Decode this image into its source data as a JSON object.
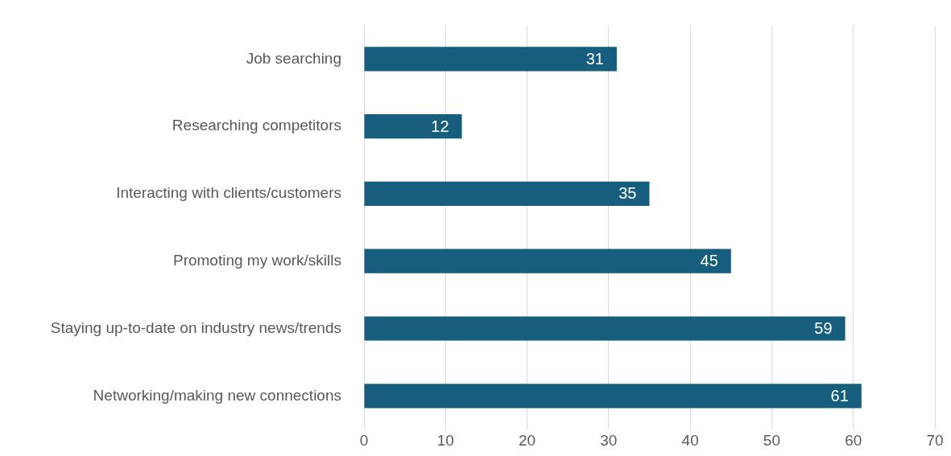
{
  "chart_data": {
    "type": "bar",
    "orientation": "horizontal",
    "categories": [
      "Job searching",
      "Researching competitors",
      "Interacting with clients/customers",
      "Promoting my work/skills",
      "Staying up-to-date on industry news/trends",
      "Networking/making new connections"
    ],
    "values": [
      31,
      12,
      35,
      45,
      59,
      61
    ],
    "color": "#175e7e",
    "xlim": [
      0,
      70
    ],
    "xticks": [
      0,
      10,
      20,
      30,
      40,
      50,
      60,
      70
    ],
    "grid": "x",
    "data_labels": true,
    "legend": false
  }
}
